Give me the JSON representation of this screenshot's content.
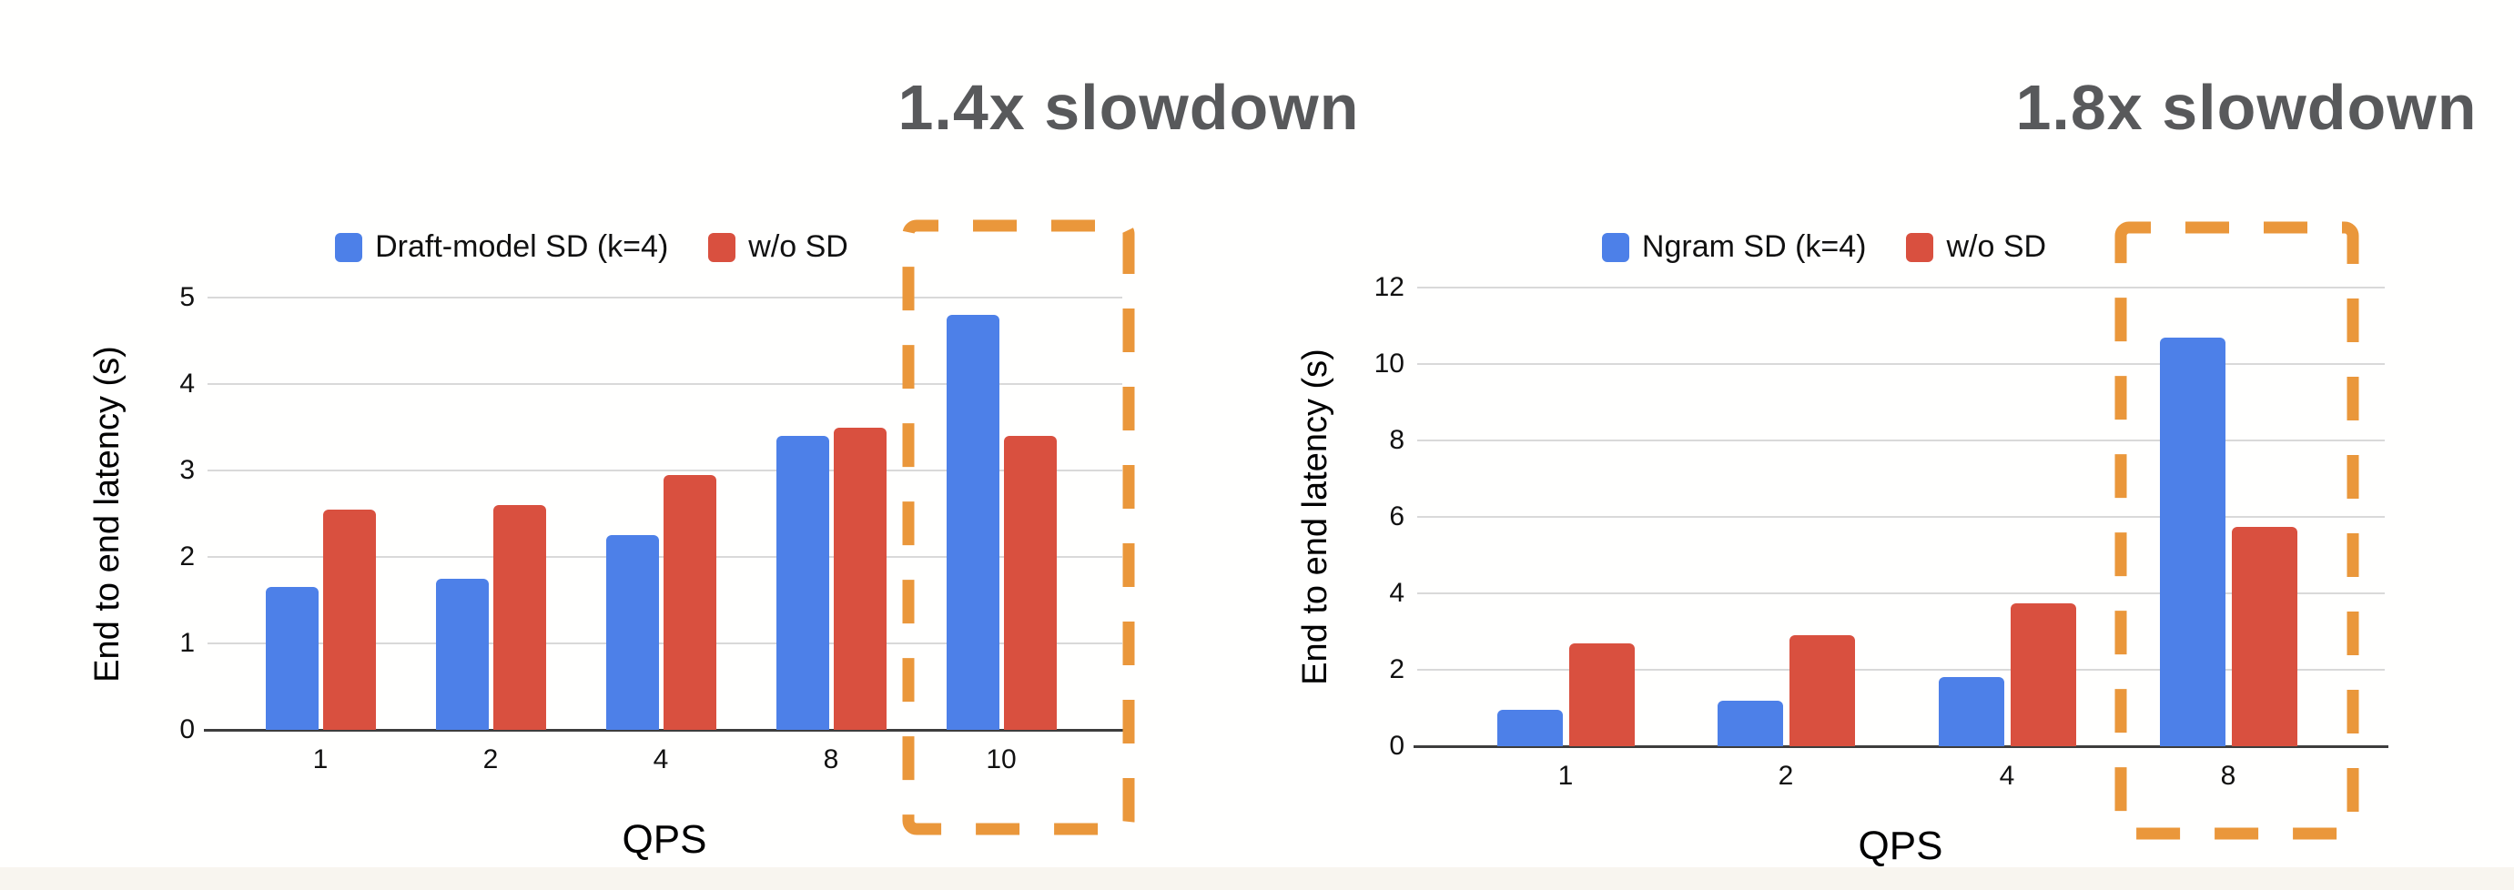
{
  "page": {
    "background": "#fffffe",
    "bottom_band_color": "#f8f5ef",
    "text_color": "#111111",
    "annotation_color": "#58595b",
    "gridline_color": "#d9d9d9",
    "axis_line_color": "#3d3d3d"
  },
  "annotations": [
    {
      "text": "1.4x slowdown",
      "color": "#58595b"
    },
    {
      "text": "1.8x slowdown",
      "color": "#58595b"
    }
  ],
  "chart_data": [
    {
      "type": "bar",
      "title": "",
      "categories": [
        "1",
        "2",
        "4",
        "8",
        "10"
      ],
      "series": [
        {
          "name": "Draft-model SD (k=4)",
          "color": "#4d80e8",
          "values": [
            1.65,
            1.75,
            2.25,
            3.4,
            4.8
          ]
        },
        {
          "name": "w/o SD",
          "color": "#d9503f",
          "values": [
            2.55,
            2.6,
            2.95,
            3.5,
            3.4
          ]
        }
      ],
      "xlabel": "QPS",
      "ylabel": "End to end latency (s)",
      "ylim": [
        0,
        5
      ],
      "ytick_step": 1,
      "grid": true,
      "legend_position": "top",
      "highlight": {
        "category": "10",
        "annotation": "1.4x slowdown",
        "box_color": "#ea973b",
        "box_style": "dashed"
      }
    },
    {
      "type": "bar",
      "title": "",
      "categories": [
        "1",
        "2",
        "4",
        "8"
      ],
      "series": [
        {
          "name": "Ngram SD (k=4)",
          "color": "#4d80e8",
          "values": [
            0.95,
            1.2,
            1.8,
            10.7
          ]
        },
        {
          "name": "w/o SD",
          "color": "#d9503f",
          "values": [
            2.7,
            2.9,
            3.75,
            5.75
          ]
        }
      ],
      "xlabel": "QPS",
      "ylabel": "End to end latency (s)",
      "ylim": [
        0,
        12
      ],
      "ytick_step": 2,
      "grid": true,
      "legend_position": "top",
      "highlight": {
        "category": "8",
        "annotation": "1.8x slowdown",
        "box_color": "#ea973b",
        "box_style": "dashed"
      }
    }
  ]
}
